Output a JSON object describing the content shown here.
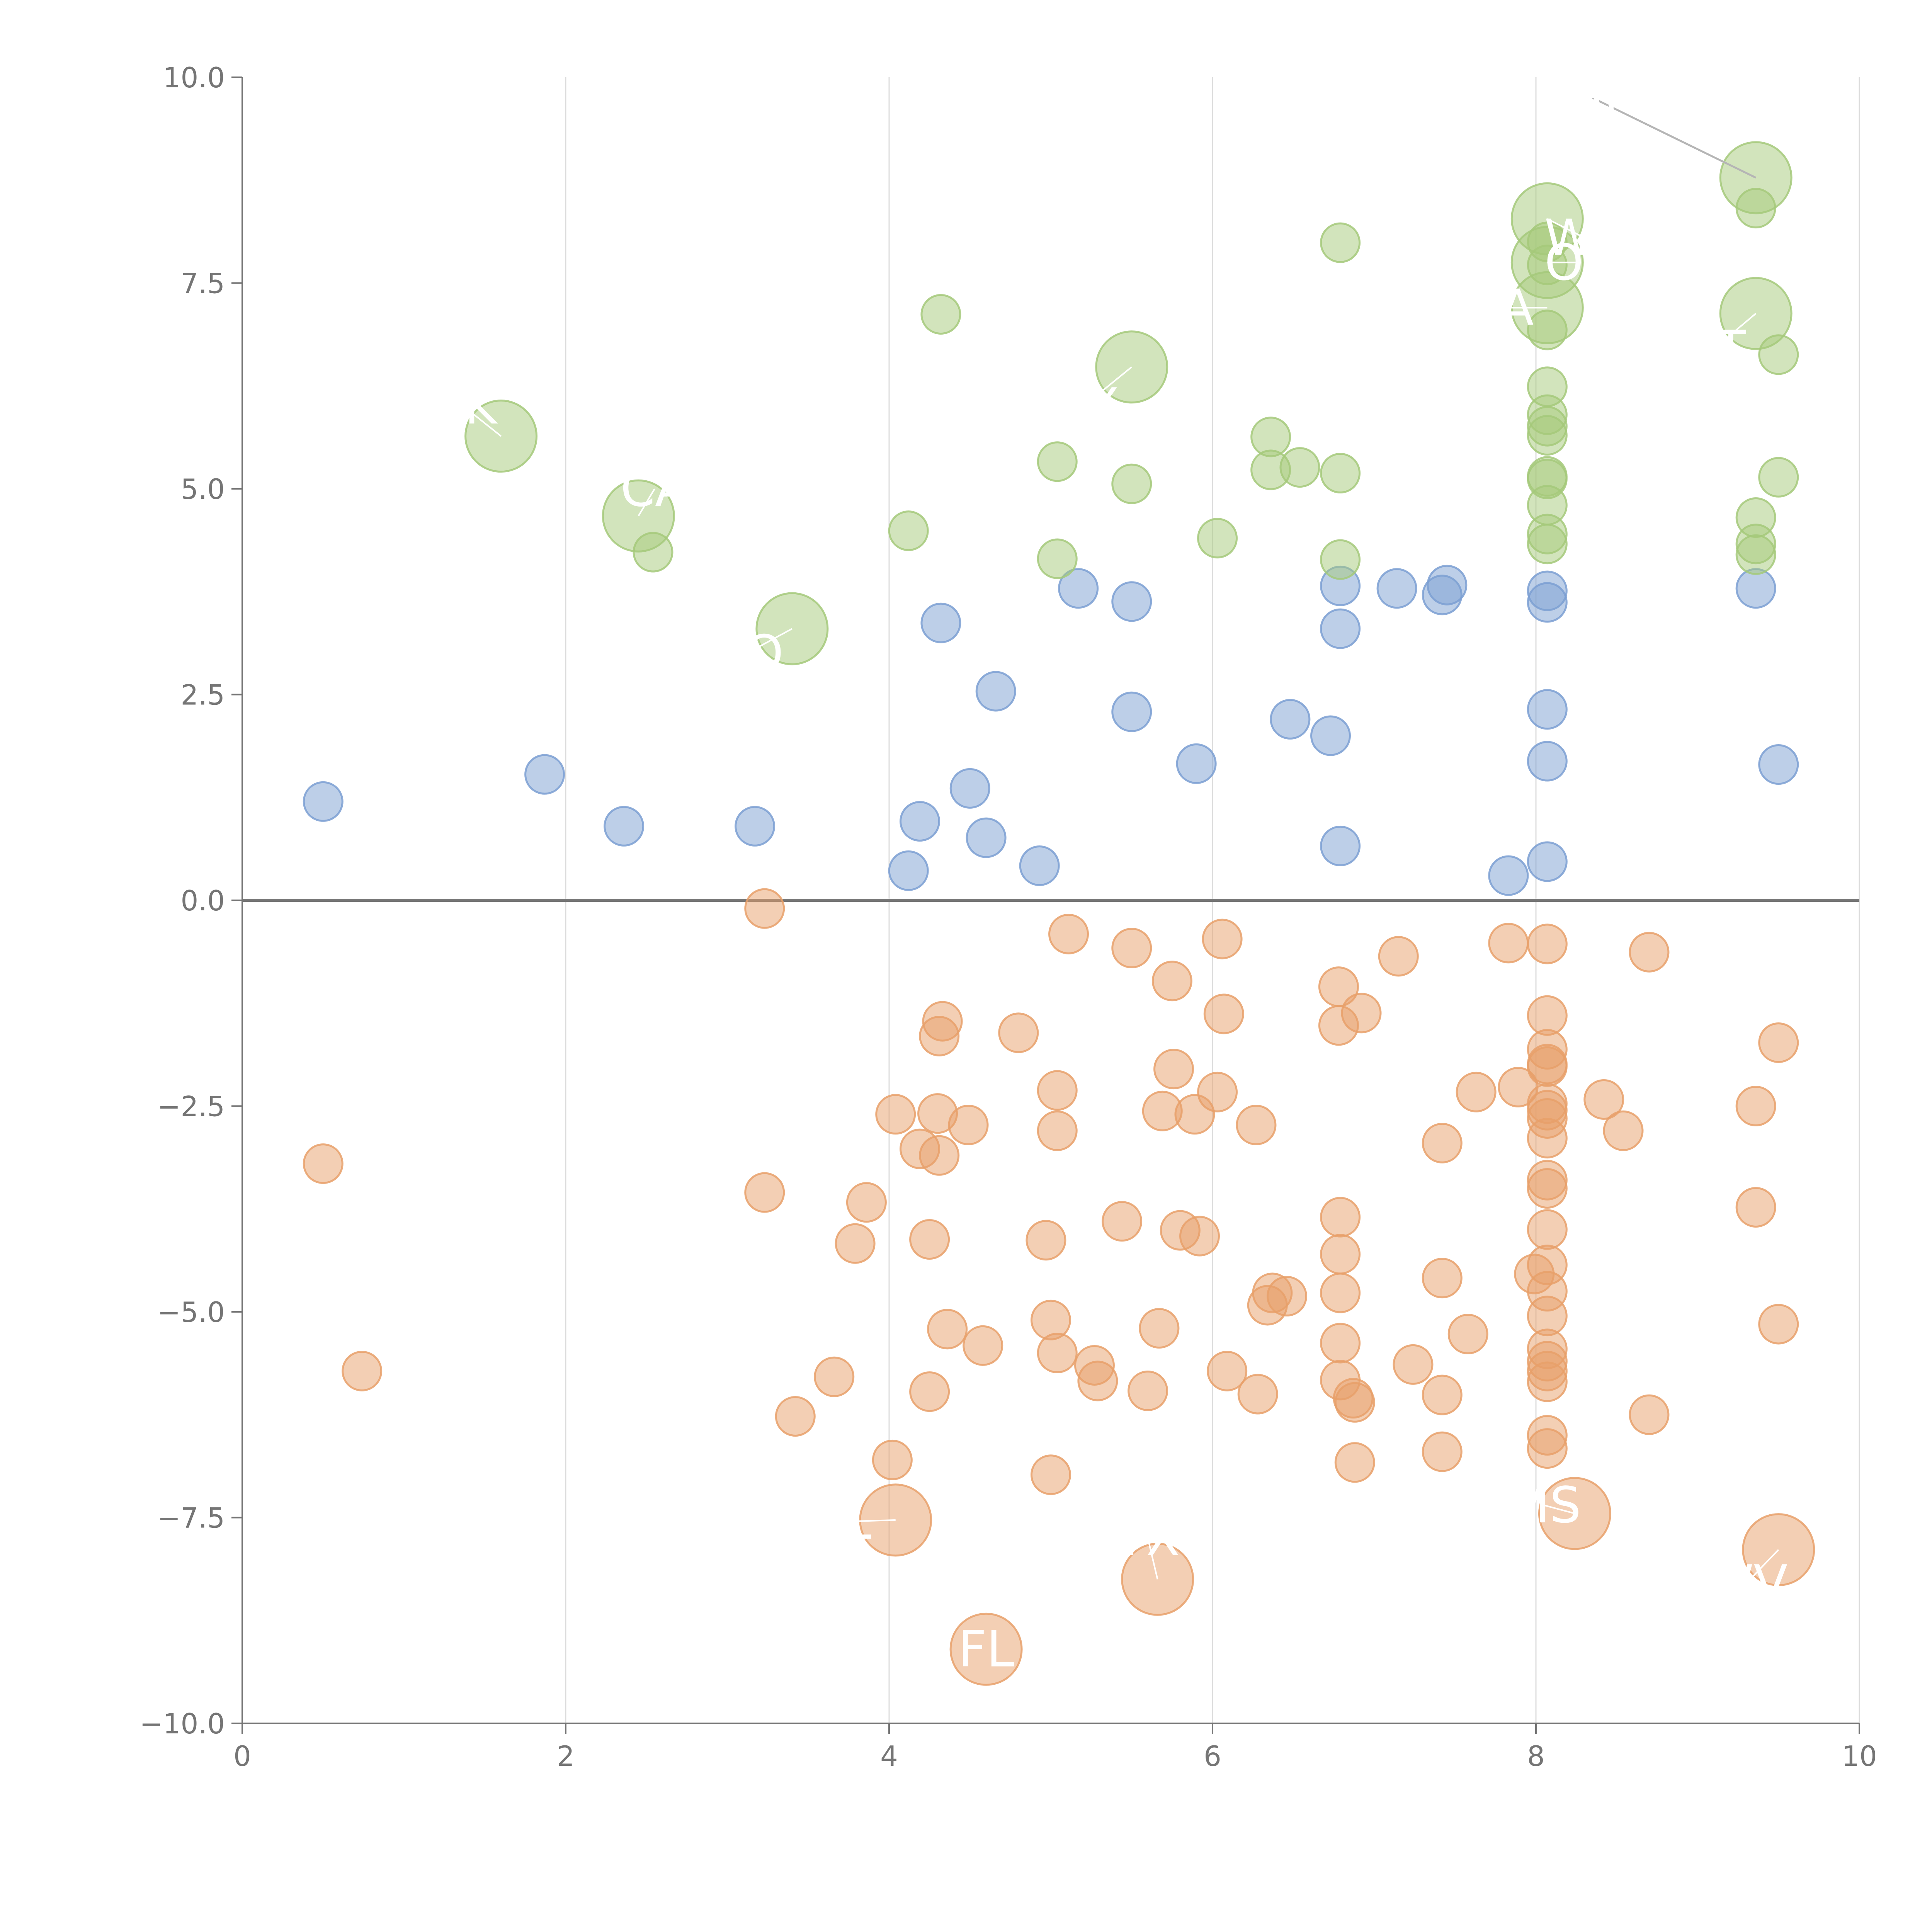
{
  "colors": {
    "blue": "#7b9fd2",
    "orange": "#e8a06a",
    "green": "#a5c97a",
    "axis": "#757575",
    "grid": "#dcdcdc",
    "label": "#ffffff"
  },
  "chart_data": {
    "type": "scatter",
    "title": "",
    "xlabel": "",
    "ylabel": "",
    "xlim": [
      0,
      10
    ],
    "ylim": [
      -10,
      10
    ],
    "x_ticks": [
      "0",
      "2",
      "4",
      "6",
      "8",
      "10"
    ],
    "y_ticks": [
      "−10.0",
      "−7.5",
      "−5.0",
      "−2.5",
      "0.0",
      "2.5",
      "5.0",
      "7.5",
      "10.0"
    ],
    "x_tick_values": [
      0,
      2,
      4,
      6,
      8,
      10
    ],
    "y_tick_values": [
      -10,
      -7.5,
      -5,
      -2.5,
      0,
      2.5,
      5,
      7.5,
      10
    ],
    "grid": "vertical",
    "legend": "none",
    "series": [
      {
        "name": "blue",
        "color": "blue",
        "points": [
          [
            0.5,
            1.2
          ],
          [
            1.87,
            1.53
          ],
          [
            2.36,
            0.9
          ],
          [
            3.17,
            0.9
          ],
          [
            4.12,
            0.36
          ],
          [
            4.19,
            0.96
          ],
          [
            4.32,
            3.37
          ],
          [
            4.5,
            1.36
          ],
          [
            4.6,
            0.76
          ],
          [
            4.66,
            2.54
          ],
          [
            4.93,
            0.42
          ],
          [
            5.17,
            3.79
          ],
          [
            5.5,
            3.63
          ],
          [
            5.5,
            2.29
          ],
          [
            5.9,
            1.66
          ],
          [
            6.48,
            2.2
          ],
          [
            6.73,
            2.0
          ],
          [
            6.79,
            3.82
          ],
          [
            6.79,
            3.3
          ],
          [
            6.79,
            0.66
          ],
          [
            7.14,
            3.79
          ],
          [
            7.42,
            3.71
          ],
          [
            7.45,
            3.83
          ],
          [
            7.83,
            0.3
          ],
          [
            8.07,
            3.76
          ],
          [
            8.07,
            3.62
          ],
          [
            8.07,
            2.32
          ],
          [
            8.07,
            1.69
          ],
          [
            8.07,
            0.47
          ],
          [
            9.36,
            3.79
          ],
          [
            9.5,
            1.65
          ]
        ]
      },
      {
        "name": "orange",
        "color": "orange",
        "points": [
          [
            0.5,
            -3.2
          ],
          [
            0.74,
            -5.72
          ],
          [
            3.23,
            -0.1
          ],
          [
            3.23,
            -3.55
          ],
          [
            3.42,
            -6.27
          ],
          [
            3.66,
            -5.79
          ],
          [
            3.79,
            -4.17
          ],
          [
            3.86,
            -3.67
          ],
          [
            4.02,
            -6.8
          ],
          [
            4.04,
            -2.6
          ],
          [
            4.19,
            -3.02
          ],
          [
            4.25,
            -4.12
          ],
          [
            4.25,
            -5.97
          ],
          [
            4.3,
            -2.59
          ],
          [
            4.31,
            -3.1
          ],
          [
            4.31,
            -1.65
          ],
          [
            4.33,
            -1.47
          ],
          [
            4.36,
            -5.21
          ],
          [
            4.49,
            -2.73
          ],
          [
            4.58,
            -5.41
          ],
          [
            4.8,
            -1.61
          ],
          [
            4.97,
            -4.13
          ],
          [
            5.0,
            -5.1
          ],
          [
            5.0,
            -6.98
          ],
          [
            5.04,
            -5.5
          ],
          [
            5.04,
            -2.31
          ],
          [
            5.04,
            -2.8
          ],
          [
            5.11,
            -0.41
          ],
          [
            5.27,
            -5.65
          ],
          [
            5.29,
            -5.84
          ],
          [
            5.44,
            -3.9
          ],
          [
            5.5,
            -0.58
          ],
          [
            5.6,
            -5.96
          ],
          [
            5.67,
            -5.2
          ],
          [
            5.69,
            -2.56
          ],
          [
            5.75,
            -0.98
          ],
          [
            5.76,
            -2.05
          ],
          [
            5.8,
            -4.01
          ],
          [
            5.89,
            -2.6
          ],
          [
            5.92,
            -4.08
          ],
          [
            6.03,
            -2.33
          ],
          [
            6.06,
            -0.47
          ],
          [
            6.07,
            -1.38
          ],
          [
            6.09,
            -5.72
          ],
          [
            6.27,
            -2.73
          ],
          [
            6.28,
            -6.0
          ],
          [
            6.34,
            -4.92
          ],
          [
            6.37,
            -4.77
          ],
          [
            6.46,
            -4.81
          ],
          [
            6.78,
            -1.05
          ],
          [
            6.78,
            -1.52
          ],
          [
            6.79,
            -3.85
          ],
          [
            6.79,
            -4.3
          ],
          [
            6.79,
            -4.77
          ],
          [
            6.79,
            -5.38
          ],
          [
            6.79,
            -5.83
          ],
          [
            6.87,
            -6.05
          ],
          [
            6.88,
            -6.1
          ],
          [
            6.88,
            -6.83
          ],
          [
            6.92,
            -1.37
          ],
          [
            7.15,
            -0.68
          ],
          [
            7.24,
            -5.64
          ],
          [
            7.42,
            -2.95
          ],
          [
            7.42,
            -4.59
          ],
          [
            7.42,
            -6.01
          ],
          [
            7.42,
            -6.7
          ],
          [
            7.58,
            -5.27
          ],
          [
            7.63,
            -2.33
          ],
          [
            7.83,
            -0.52
          ],
          [
            7.89,
            -2.27
          ],
          [
            7.99,
            -4.54
          ],
          [
            8.07,
            -0.53
          ],
          [
            8.07,
            -1.4
          ],
          [
            8.07,
            -1.81
          ],
          [
            8.07,
            -1.99
          ],
          [
            8.07,
            -2.02
          ],
          [
            8.07,
            -2.47
          ],
          [
            8.07,
            -2.55
          ],
          [
            8.07,
            -2.65
          ],
          [
            8.07,
            -2.89
          ],
          [
            8.07,
            -3.4
          ],
          [
            8.07,
            -3.5
          ],
          [
            8.07,
            -4.0
          ],
          [
            8.07,
            -4.43
          ],
          [
            8.07,
            -4.75
          ],
          [
            8.07,
            -5.05
          ],
          [
            8.07,
            -5.45
          ],
          [
            8.07,
            -5.6
          ],
          [
            8.07,
            -5.72
          ],
          [
            8.07,
            -5.85
          ],
          [
            8.07,
            -6.5
          ],
          [
            8.07,
            -6.66
          ],
          [
            8.42,
            -2.42
          ],
          [
            8.54,
            -2.8
          ],
          [
            8.7,
            -0.63
          ],
          [
            8.7,
            -6.25
          ],
          [
            9.36,
            -2.5
          ],
          [
            9.36,
            -3.73
          ],
          [
            9.5,
            -1.73
          ],
          [
            9.5,
            -5.15
          ]
        ]
      },
      {
        "name": "green",
        "color": "green",
        "points": [
          [
            2.54,
            4.23
          ],
          [
            4.12,
            4.49
          ],
          [
            4.32,
            7.12
          ],
          [
            5.04,
            4.15
          ],
          [
            5.04,
            5.33
          ],
          [
            5.5,
            5.06
          ],
          [
            6.03,
            4.4
          ],
          [
            6.36,
            5.63
          ],
          [
            6.36,
            5.23
          ],
          [
            6.54,
            5.26
          ],
          [
            6.79,
            7.99
          ],
          [
            6.79,
            5.19
          ],
          [
            6.79,
            4.14
          ],
          [
            8.07,
            8.0
          ],
          [
            8.07,
            7.72
          ],
          [
            8.07,
            6.93
          ],
          [
            8.07,
            6.24
          ],
          [
            8.07,
            5.9
          ],
          [
            8.07,
            5.76
          ],
          [
            8.07,
            5.65
          ],
          [
            8.07,
            5.15
          ],
          [
            8.07,
            5.12
          ],
          [
            8.07,
            4.8
          ],
          [
            8.07,
            4.45
          ],
          [
            8.07,
            4.33
          ],
          [
            9.36,
            8.41
          ],
          [
            9.36,
            4.65
          ],
          [
            9.36,
            4.33
          ],
          [
            9.36,
            4.2
          ],
          [
            9.5,
            6.63
          ],
          [
            9.5,
            5.14
          ]
        ]
      }
    ],
    "highlighted": [
      {
        "series": "green",
        "x": 1.6,
        "y": 5.64,
        "label": "AK",
        "label_x": 1.37,
        "label_y": 6.0
      },
      {
        "series": "green",
        "x": 2.45,
        "y": 4.67,
        "label": "CA",
        "label_x": 2.55,
        "label_y": 5.0
      },
      {
        "series": "green",
        "x": 3.4,
        "y": 3.3,
        "label": "CO",
        "label_x": 3.12,
        "label_y": 3.0
      },
      {
        "series": "green",
        "x": 5.5,
        "y": 6.48,
        "label": "NY",
        "label_x": 5.2,
        "label_y": 6.0
      },
      {
        "series": "green",
        "x": 8.07,
        "y": 8.28,
        "label": "WA",
        "label_x": 8.3,
        "label_y": 8.05
      },
      {
        "series": "green",
        "x": 8.07,
        "y": 7.75,
        "label": "OR",
        "label_x": 8.28,
        "label_y": 7.75
      },
      {
        "series": "green",
        "x": 8.07,
        "y": 7.2,
        "label": "MA",
        "label_x": 7.75,
        "label_y": 7.2
      },
      {
        "series": "green",
        "x": 9.36,
        "y": 7.13,
        "label": "VT",
        "label_x": 9.1,
        "label_y": 6.7
      },
      {
        "series": "green",
        "x": 9.36,
        "y": 8.78,
        "label": "HI",
        "label_x": 8.35,
        "label_y": 9.75
      },
      {
        "series": "orange",
        "x": 4.04,
        "y": -7.53,
        "label": "AL",
        "label_x": 3.7,
        "label_y": -7.55
      },
      {
        "series": "orange",
        "x": 4.6,
        "y": -9.1,
        "label": "FL",
        "label_x": 4.6,
        "label_y": -9.1
      },
      {
        "series": "orange",
        "x": 5.66,
        "y": -8.25,
        "label": "TX",
        "label_x": 5.6,
        "label_y": -7.75
      },
      {
        "series": "orange",
        "x": 8.24,
        "y": -7.45,
        "label": "MS",
        "label_x": 8.05,
        "label_y": -7.35
      },
      {
        "series": "orange",
        "x": 9.5,
        "y": -7.89,
        "label": "WV",
        "label_x": 9.3,
        "label_y": -8.3
      }
    ]
  }
}
